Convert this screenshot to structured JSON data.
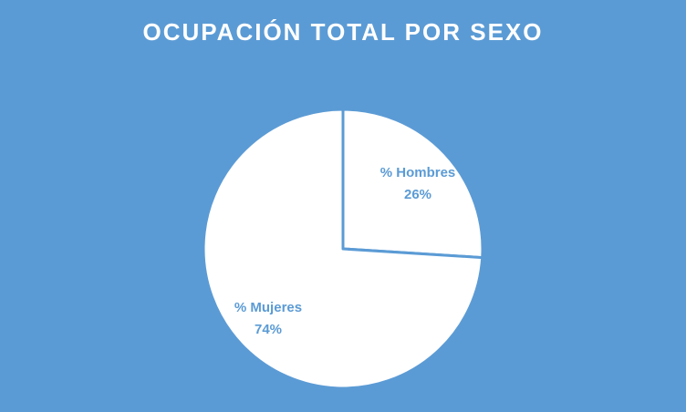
{
  "chart_data": {
    "type": "pie",
    "title": "OCUPACIÓN TOTAL POR SEXO",
    "categories": [
      "% Hombres",
      "% Mujeres"
    ],
    "values": [
      26,
      74
    ],
    "value_labels": [
      "26%",
      "74%"
    ],
    "start_angle_deg": 0,
    "direction": "clockwise",
    "legend": "none"
  },
  "colors": {
    "background": "#5B9BD5",
    "slice_fill": "#FFFFFF",
    "slice_border": "#5B9BD5",
    "label_text": "#5B9BD5",
    "title_text": "#FFFFFF"
  }
}
